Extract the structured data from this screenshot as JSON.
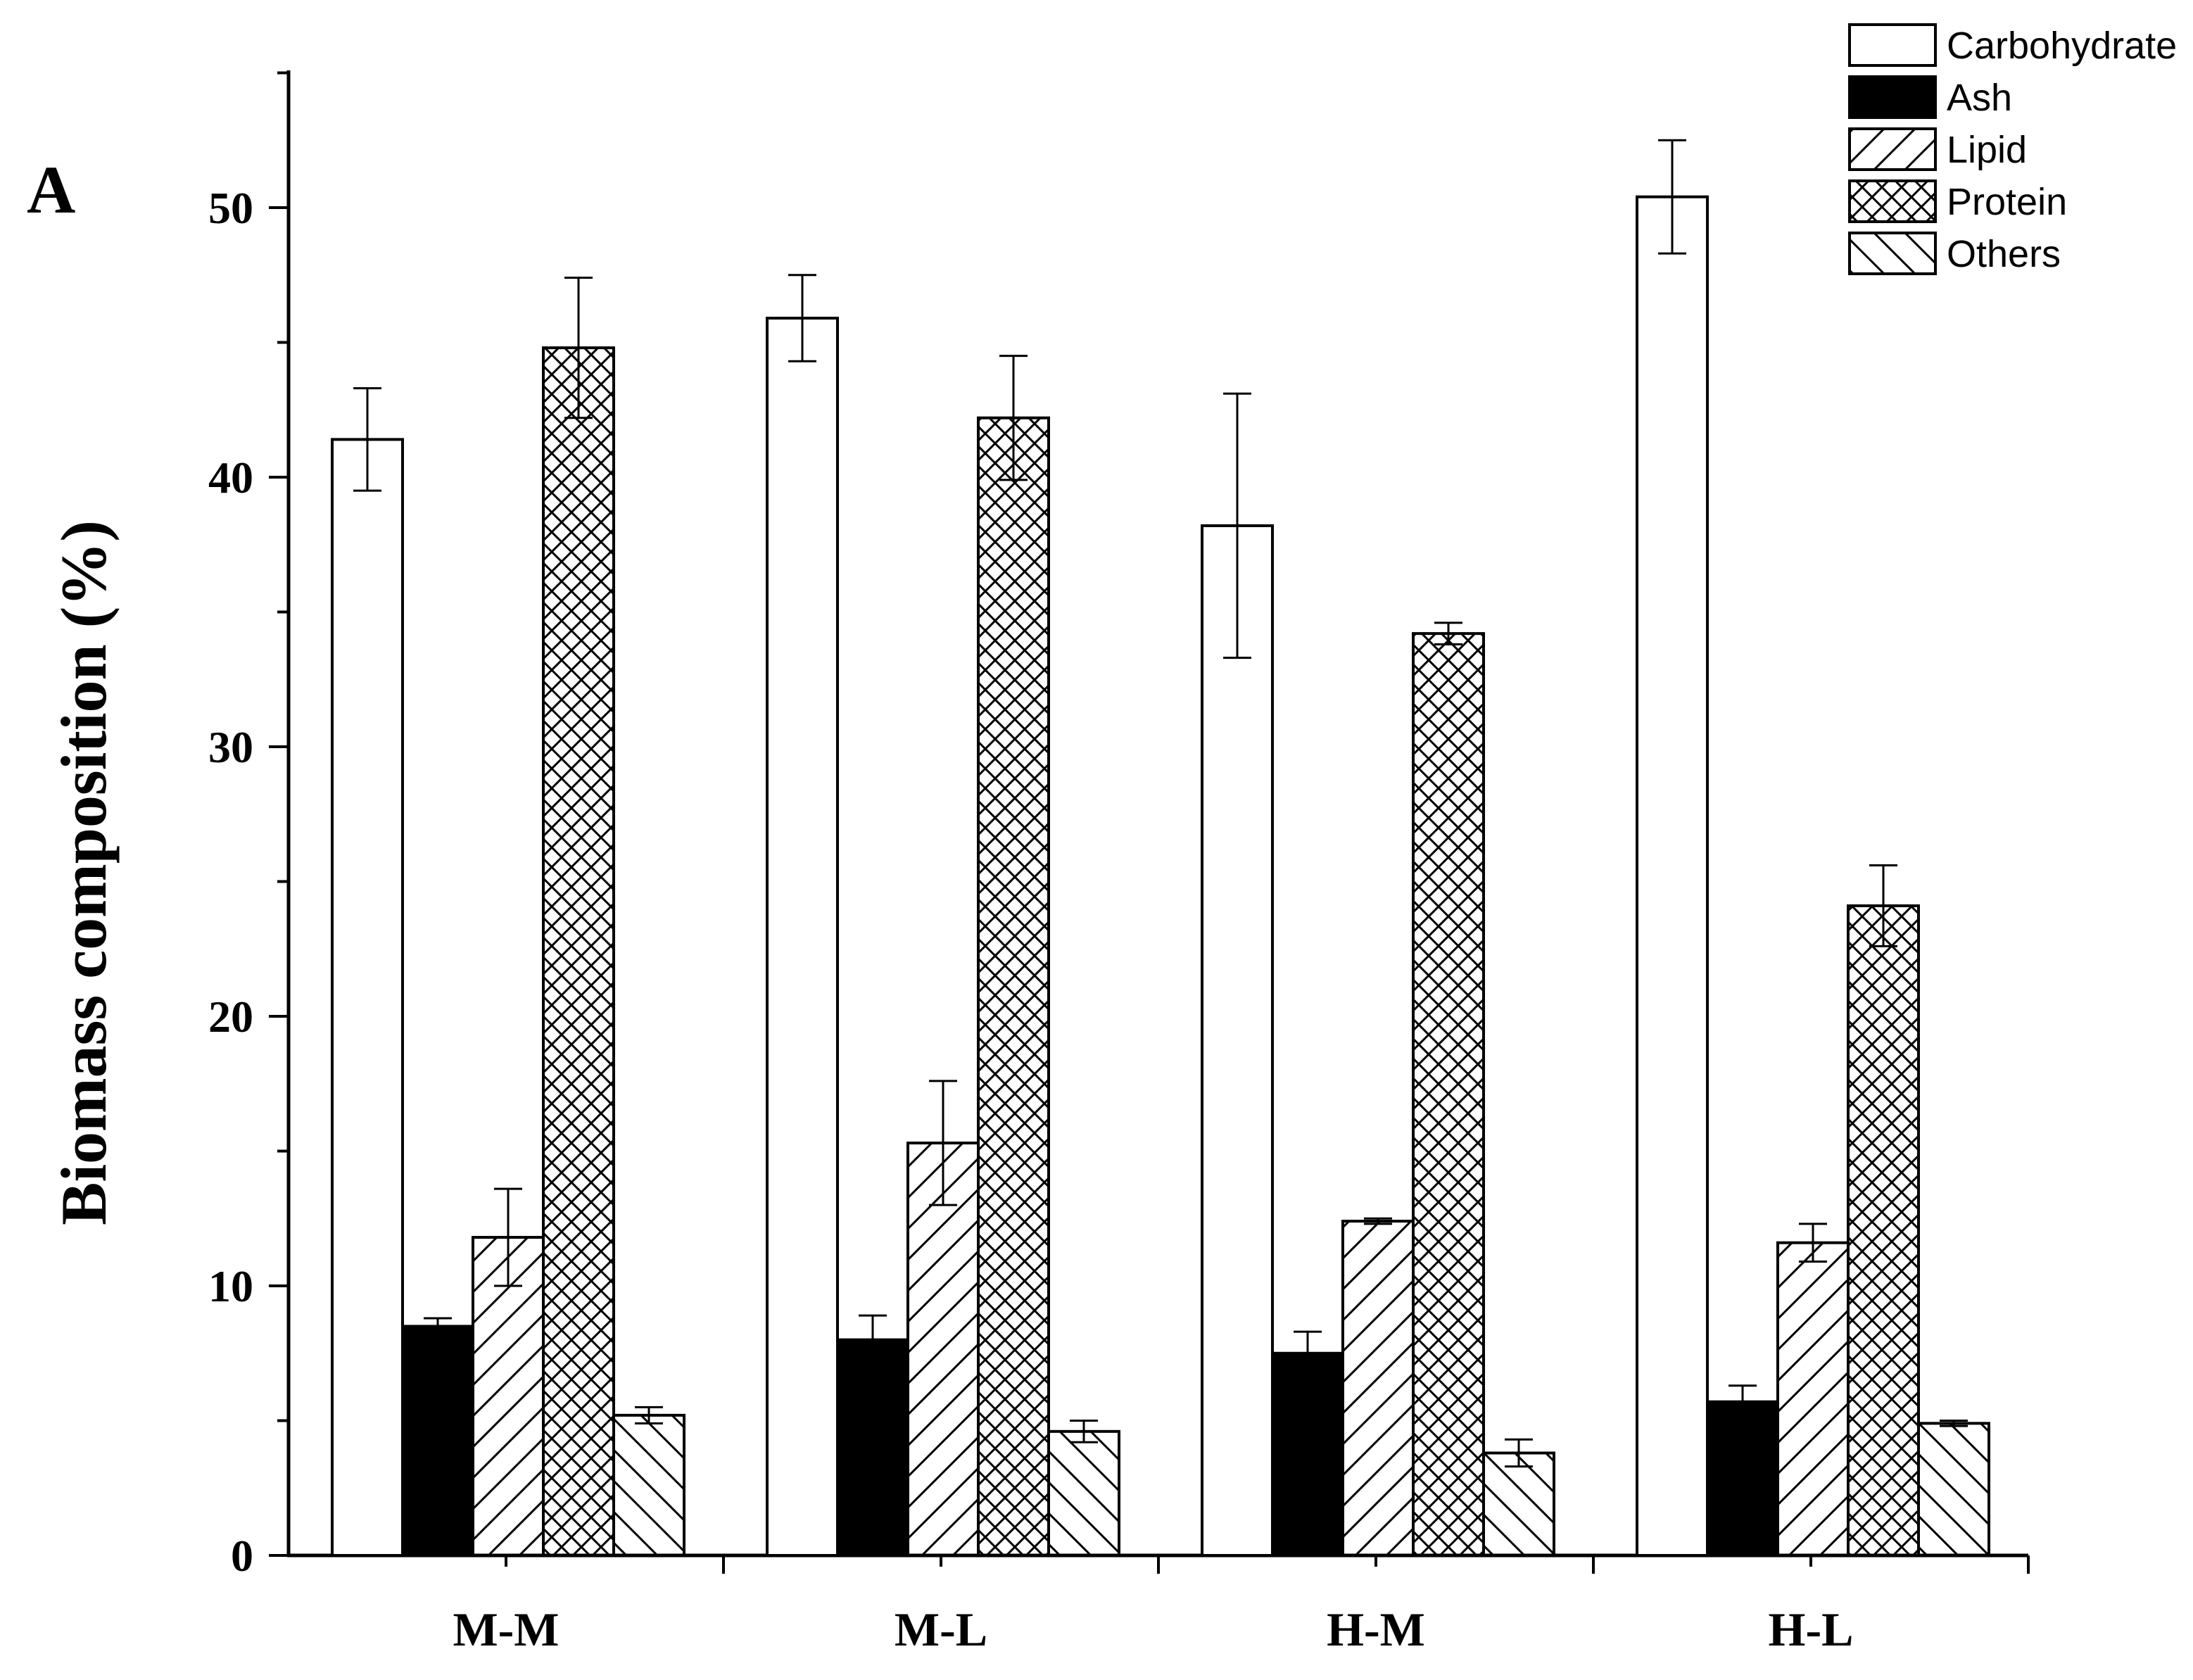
{
  "chart_data": {
    "type": "bar",
    "panel_label": "A",
    "title": "",
    "xlabel": "",
    "ylabel": "Biomass composition (%)",
    "ylim": [
      0,
      55
    ],
    "yticks": [
      0,
      10,
      20,
      30,
      40,
      50
    ],
    "grid": false,
    "legend_position": "top-right",
    "categories": [
      "M-M",
      "M-L",
      "H-M",
      "H-L"
    ],
    "series": [
      {
        "name": "Carbohydrate",
        "pattern": "none",
        "values": [
          41.4,
          45.9,
          38.2,
          50.4
        ],
        "errors": [
          1.9,
          1.6,
          4.9,
          2.1
        ]
      },
      {
        "name": "Ash",
        "pattern": "solid",
        "values": [
          8.5,
          8.0,
          7.5,
          5.7
        ],
        "errors": [
          0.3,
          0.9,
          0.8,
          0.6
        ]
      },
      {
        "name": "Lipid",
        "pattern": "diagonal",
        "values": [
          11.8,
          15.3,
          12.4,
          11.6
        ],
        "errors": [
          1.8,
          2.3,
          0.1,
          0.7
        ]
      },
      {
        "name": "Protein",
        "pattern": "crosshatch",
        "values": [
          44.8,
          42.2,
          34.2,
          24.1
        ],
        "errors": [
          2.6,
          2.3,
          0.4,
          1.5
        ]
      },
      {
        "name": "Others",
        "pattern": "backdiagonal",
        "values": [
          5.2,
          4.6,
          3.8,
          4.9
        ],
        "errors": [
          0.3,
          0.4,
          0.5,
          0.1
        ]
      }
    ]
  }
}
